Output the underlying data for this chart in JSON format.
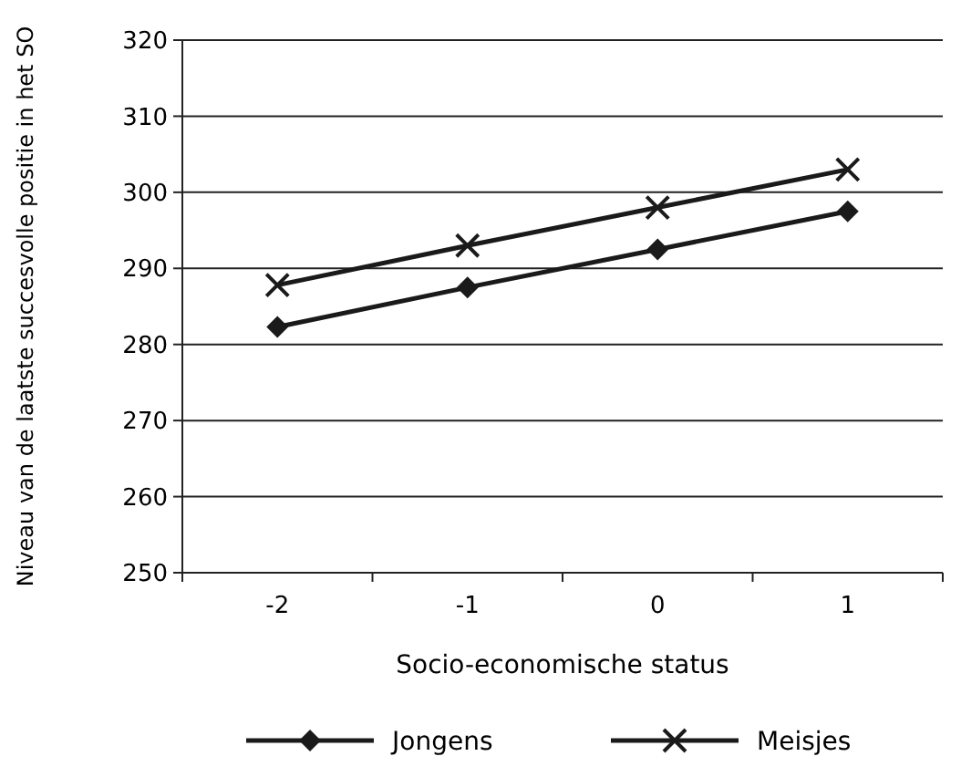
{
  "chart_data": {
    "type": "line",
    "xlabel": "Socio-economische status",
    "ylabel": "Niveau van de laatste succesvolle positie in het SO",
    "categories": [
      "-2",
      "-1",
      "0",
      "1"
    ],
    "ylim": [
      250,
      320
    ],
    "yticks": [
      250,
      260,
      270,
      280,
      290,
      300,
      310,
      320
    ],
    "grid": "y",
    "legend": "bottom",
    "series": [
      {
        "name": "Jongens",
        "color": "#1a1a1a",
        "marker": "diamond",
        "values": [
          282.3,
          287.5,
          292.5,
          297.5
        ]
      },
      {
        "name": "Meisjes",
        "color": "#1a1a1a",
        "marker": "cross",
        "values": [
          287.8,
          293,
          298,
          303
        ]
      }
    ]
  }
}
